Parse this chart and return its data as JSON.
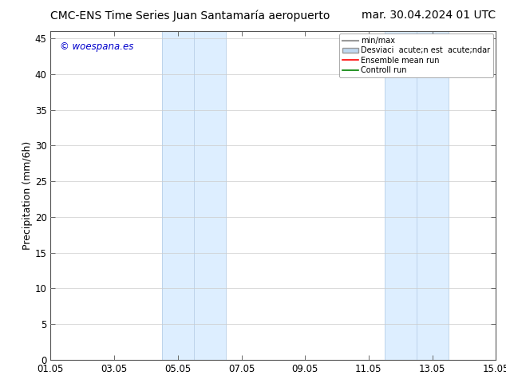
{
  "title_left": "CMC-ENS Time Series Juan Santamaría aeropuerto",
  "title_right": "mar. 30.04.2024 01 UTC",
  "ylabel": "Precipitation (mm/6h)",
  "ylim": [
    0,
    46
  ],
  "yticks": [
    0,
    5,
    10,
    15,
    20,
    25,
    30,
    35,
    40,
    45
  ],
  "xtick_labels": [
    "01.05",
    "03.05",
    "05.05",
    "07.05",
    "09.05",
    "11.05",
    "13.05",
    "15.05"
  ],
  "xtick_positions": [
    0,
    2,
    4,
    6,
    8,
    10,
    12,
    14
  ],
  "xlim": [
    0,
    14
  ],
  "bg_color": "#ffffff",
  "plot_bg_color": "#ffffff",
  "shaded_regions": [
    {
      "x_start": 3.5,
      "x_end": 5.5,
      "color": "#ddeeff"
    },
    {
      "x_start": 10.5,
      "x_end": 12.5,
      "color": "#ddeeff"
    }
  ],
  "shaded_region_vlines": [
    {
      "x": 3.5
    },
    {
      "x": 4.5
    },
    {
      "x": 5.5
    },
    {
      "x": 10.5
    },
    {
      "x": 11.5
    },
    {
      "x": 12.5
    }
  ],
  "watermark_text": "© woespana.es",
  "watermark_color": "#0000cc",
  "legend_labels": [
    "min/max",
    "Desviaci  acute;n est  acute;ndar",
    "Ensemble mean run",
    "Controll run"
  ],
  "legend_colors_line": [
    "#999999",
    "#c0d8f0",
    "#ff0000",
    "#008000"
  ],
  "title_fontsize": 10,
  "axis_label_fontsize": 9,
  "tick_fontsize": 8.5
}
